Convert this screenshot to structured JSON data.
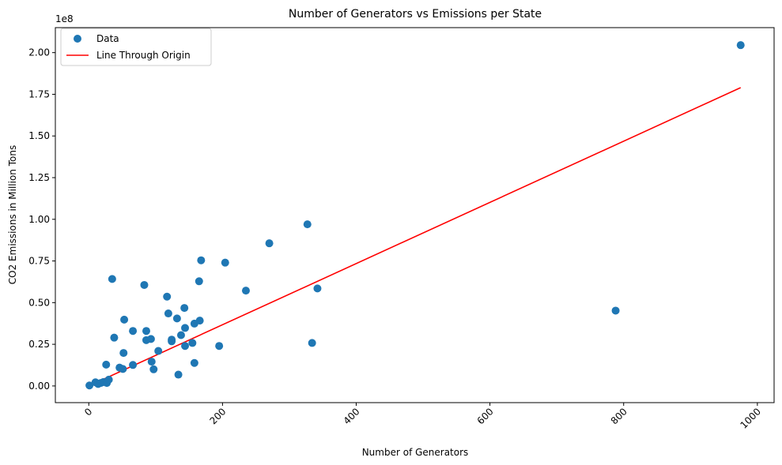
{
  "chart_data": {
    "type": "scatter",
    "title": "Number of Generators vs Emissions per State",
    "xlabel": "Number of Generators",
    "ylabel": "CO2 Emissions in Million Tons",
    "y_offset_label": "1e8",
    "xlim": [
      -50,
      1025
    ],
    "ylim": [
      -10000000,
      215000000
    ],
    "x_ticks": [
      0,
      200,
      400,
      600,
      800,
      1000
    ],
    "x_tick_labels": [
      "0",
      "200",
      "400",
      "600",
      "800",
      "1000"
    ],
    "x_tick_rotation": -45,
    "y_ticks": [
      0,
      25000000,
      50000000,
      75000000,
      100000000,
      125000000,
      150000000,
      175000000,
      200000000
    ],
    "y_tick_labels": [
      "0.00",
      "0.25",
      "0.50",
      "0.75",
      "1.00",
      "1.25",
      "1.50",
      "1.75",
      "2.00"
    ],
    "grid": false,
    "legend_position": "top-left",
    "series": [
      {
        "name": "Data",
        "kind": "scatter",
        "color": "#1f77b4",
        "points": [
          [
            1,
            300000
          ],
          [
            10,
            2200000
          ],
          [
            14,
            1200000
          ],
          [
            18,
            1800000
          ],
          [
            22,
            2400000
          ],
          [
            26,
            12800000
          ],
          [
            27,
            1800000
          ],
          [
            30,
            3800000
          ],
          [
            35,
            64200000
          ],
          [
            38,
            29000000
          ],
          [
            46,
            11000000
          ],
          [
            51,
            10200000
          ],
          [
            52,
            19800000
          ],
          [
            53,
            39800000
          ],
          [
            66,
            33000000
          ],
          [
            66,
            12600000
          ],
          [
            83,
            60600000
          ],
          [
            86,
            33000000
          ],
          [
            86,
            27500000
          ],
          [
            93,
            28200000
          ],
          [
            94,
            14600000
          ],
          [
            97,
            10000000
          ],
          [
            104,
            21000000
          ],
          [
            117,
            53600000
          ],
          [
            119,
            43500000
          ],
          [
            124,
            26800000
          ],
          [
            124,
            27800000
          ],
          [
            132,
            40500000
          ],
          [
            134,
            6800000
          ],
          [
            138,
            30500000
          ],
          [
            143,
            46800000
          ],
          [
            144,
            34800000
          ],
          [
            144,
            24000000
          ],
          [
            155,
            25800000
          ],
          [
            158,
            37400000
          ],
          [
            158,
            13800000
          ],
          [
            165,
            62800000
          ],
          [
            166,
            39200000
          ],
          [
            168,
            75400000
          ],
          [
            195,
            24000000
          ],
          [
            204,
            74000000
          ],
          [
            235,
            57200000
          ],
          [
            270,
            85600000
          ],
          [
            327,
            97000000
          ],
          [
            334,
            25800000
          ],
          [
            342,
            58500000
          ],
          [
            788,
            45200000
          ],
          [
            975,
            204500000
          ]
        ]
      },
      {
        "name": "Line Through Origin",
        "kind": "line",
        "color": "#ff0000",
        "points": [
          [
            0,
            0
          ],
          [
            975,
            179000000
          ]
        ]
      }
    ]
  }
}
